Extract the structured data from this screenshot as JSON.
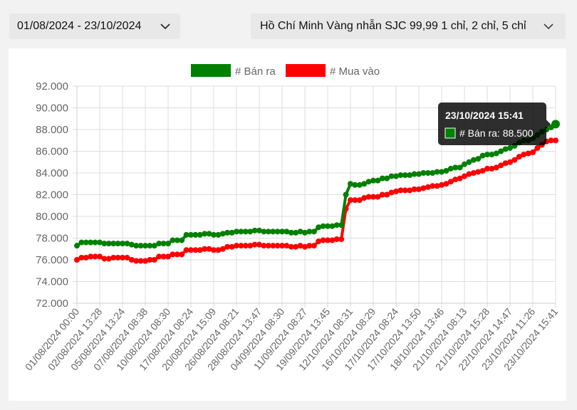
{
  "filters": {
    "date_range": "01/08/2024 - 23/10/2024",
    "location_product": "Hồ Chí Minh Vàng nhẫn SJC 99,99 1 chỉ, 2 chỉ, 5 chỉ"
  },
  "icons": {
    "dropdown": "chevron-down-icon"
  },
  "colors": {
    "sell": "#008000",
    "buy": "#ff0000",
    "grid": "#dddddd",
    "tooltip_bg": "#000000"
  },
  "tooltip": {
    "title": "23/10/2024 15:41",
    "series_label": "# Bán ra",
    "value": "88.500",
    "text": "# Bán ra: 88.500"
  },
  "chart_data": {
    "type": "line",
    "legend_position": "top",
    "grid": true,
    "ylim": [
      72000,
      92000
    ],
    "y_ticks": [
      "72.000",
      "74.000",
      "76.000",
      "78.000",
      "80.000",
      "82.000",
      "84.000",
      "86.000",
      "88.000",
      "90.000",
      "92.000"
    ],
    "x_tick_labels": [
      "01/08/2024 00:00",
      "02/08/2024 13:28",
      "05/08/2024 13:24",
      "07/08/2024 08:38",
      "10/08/2024 08:30",
      "17/08/2024 08:24",
      "20/08/2024 15:09",
      "26/08/2024 08:21",
      "28/08/2024 13:47",
      "04/09/2024 08:30",
      "11/09/2024 08:27",
      "19/09/2024 13:45",
      "12/10/2024 08:31",
      "16/10/2024 08:29",
      "17/10/2024 08:24",
      "17/10/2024 13:50",
      "18/10/2024 13:46",
      "21/10/2024 08:13",
      "21/10/2024 15:28",
      "22/10/2024 14:47",
      "23/10/2024 11:26",
      "23/10/2024 15:41"
    ],
    "point_count": 106,
    "series": [
      {
        "name": "# Bán ra",
        "color": "#008000",
        "values": [
          77300,
          77600,
          77600,
          77600,
          77600,
          77600,
          77500,
          77500,
          77500,
          77500,
          77500,
          77500,
          77400,
          77300,
          77300,
          77300,
          77300,
          77300,
          77500,
          77500,
          77500,
          77800,
          77800,
          77800,
          78300,
          78300,
          78300,
          78300,
          78400,
          78400,
          78300,
          78300,
          78400,
          78500,
          78500,
          78600,
          78600,
          78600,
          78600,
          78700,
          78700,
          78600,
          78600,
          78600,
          78600,
          78600,
          78600,
          78500,
          78500,
          78600,
          78500,
          78600,
          78600,
          79000,
          79100,
          79100,
          79100,
          79200,
          79200,
          82000,
          83000,
          82900,
          82900,
          83000,
          83200,
          83300,
          83300,
          83500,
          83500,
          83700,
          83700,
          83800,
          83800,
          83800,
          83900,
          83900,
          84000,
          84000,
          84000,
          84100,
          84100,
          84200,
          84400,
          84500,
          84500,
          84800,
          85000,
          85200,
          85300,
          85600,
          85700,
          85700,
          85800,
          86000,
          86200,
          86300,
          86500,
          86800,
          87000,
          87000,
          87200,
          87500,
          87800,
          88000,
          88200,
          88500
        ]
      },
      {
        "name": "# Mua vào",
        "color": "#ff0000",
        "values": [
          76000,
          76200,
          76200,
          76300,
          76300,
          76300,
          76100,
          76100,
          76200,
          76200,
          76200,
          76200,
          76000,
          75900,
          75900,
          75900,
          76000,
          76000,
          76300,
          76300,
          76300,
          76500,
          76500,
          76500,
          76900,
          76900,
          76900,
          76900,
          77000,
          77000,
          76900,
          76900,
          77000,
          77200,
          77200,
          77300,
          77300,
          77300,
          77300,
          77400,
          77400,
          77300,
          77300,
          77300,
          77300,
          77300,
          77300,
          77200,
          77200,
          77300,
          77200,
          77300,
          77300,
          77700,
          77800,
          77800,
          77800,
          77900,
          77900,
          80700,
          81500,
          81500,
          81500,
          81700,
          81800,
          81800,
          81800,
          82000,
          82000,
          82200,
          82300,
          82400,
          82400,
          82400,
          82500,
          82500,
          82600,
          82700,
          82800,
          82800,
          82900,
          83000,
          83200,
          83400,
          83500,
          83700,
          83900,
          84000,
          84100,
          84200,
          84400,
          84400,
          84500,
          84700,
          84900,
          85000,
          85200,
          85500,
          85700,
          85800,
          85900,
          86300,
          86600,
          86900,
          87000,
          87000
        ]
      }
    ]
  }
}
